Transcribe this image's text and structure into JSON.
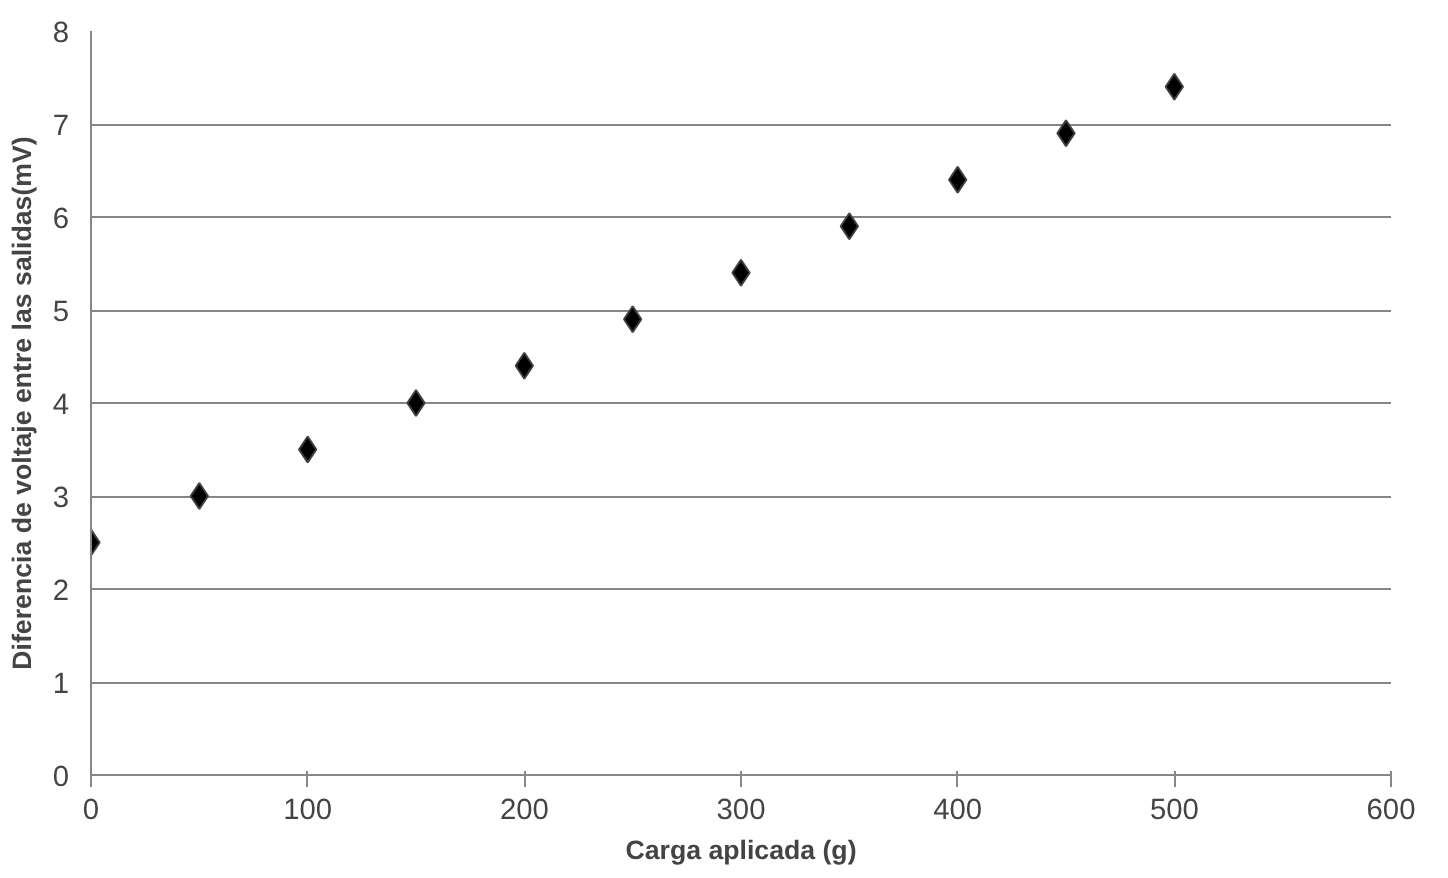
{
  "chart_data": {
    "type": "scatter",
    "xlabel": "Carga aplicada (g)",
    "ylabel": "Diferencia de voltaje entre las salidas(mV)",
    "x": [
      0,
      50,
      100,
      150,
      200,
      250,
      300,
      350,
      400,
      450,
      500
    ],
    "series": [
      {
        "color": "#000000",
        "values": [
          2.5,
          3.0,
          3.5,
          4.0,
          4.4,
          4.9,
          5.4,
          5.9,
          6.4,
          6.9,
          7.4
        ]
      }
    ],
    "xlim": [
      0,
      600
    ],
    "ylim": [
      0,
      8
    ],
    "xticks": [
      0,
      100,
      200,
      300,
      400,
      500,
      600
    ],
    "yticks": [
      0,
      1,
      2,
      3,
      4,
      5,
      6,
      7,
      8
    ],
    "grid": "y",
    "marker": "diamond"
  }
}
